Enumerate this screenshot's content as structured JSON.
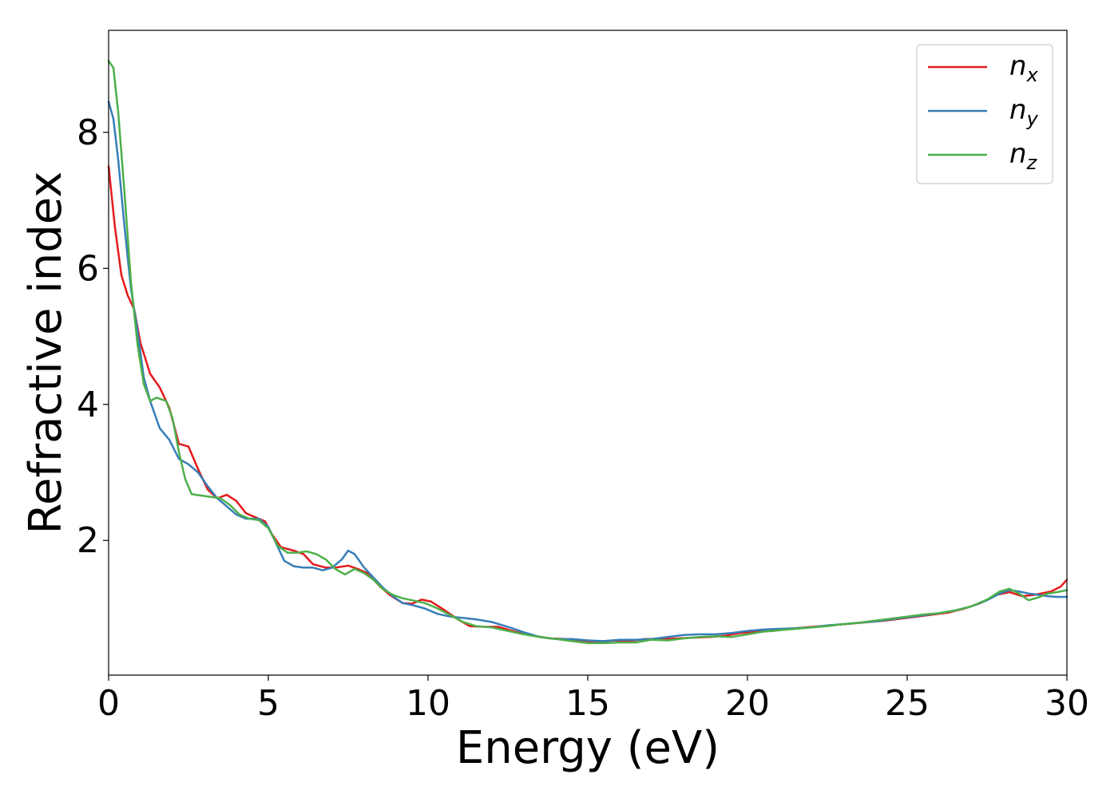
{
  "chart_data": {
    "type": "line",
    "title": "",
    "xlabel": "Energy (eV)",
    "ylabel": "Refractive index",
    "xlim": [
      0,
      30
    ],
    "ylim": [
      0.02,
      9.5
    ],
    "x_ticks": [
      "0",
      "5",
      "10",
      "15",
      "20",
      "25",
      "30"
    ],
    "y_ticks": [
      "2",
      "4",
      "6",
      "8"
    ],
    "grid": false,
    "legend_position": "top-right",
    "series": [
      {
        "name": "n",
        "sub": "x",
        "color": "#e41a1c",
        "points": [
          [
            0,
            7.5
          ],
          [
            0.2,
            6.6
          ],
          [
            0.4,
            5.9
          ],
          [
            0.6,
            5.6
          ],
          [
            0.8,
            5.4
          ],
          [
            1.0,
            4.9
          ],
          [
            1.3,
            4.45
          ],
          [
            1.6,
            4.25
          ],
          [
            1.9,
            3.95
          ],
          [
            2.1,
            3.6
          ],
          [
            2.2,
            3.42
          ],
          [
            2.5,
            3.38
          ],
          [
            2.8,
            3.05
          ],
          [
            3.1,
            2.75
          ],
          [
            3.4,
            2.62
          ],
          [
            3.7,
            2.67
          ],
          [
            4.0,
            2.58
          ],
          [
            4.3,
            2.4
          ],
          [
            4.6,
            2.34
          ],
          [
            4.9,
            2.28
          ],
          [
            5.1,
            2.1
          ],
          [
            5.4,
            1.9
          ],
          [
            5.8,
            1.85
          ],
          [
            6.1,
            1.8
          ],
          [
            6.4,
            1.65
          ],
          [
            6.8,
            1.6
          ],
          [
            7.1,
            1.6
          ],
          [
            7.5,
            1.63
          ],
          [
            7.8,
            1.58
          ],
          [
            8.1,
            1.52
          ],
          [
            8.5,
            1.32
          ],
          [
            8.8,
            1.2
          ],
          [
            9.2,
            1.08
          ],
          [
            9.5,
            1.07
          ],
          [
            9.8,
            1.13
          ],
          [
            10.1,
            1.1
          ],
          [
            10.5,
            0.98
          ],
          [
            10.9,
            0.85
          ],
          [
            11.3,
            0.74
          ],
          [
            11.8,
            0.73
          ],
          [
            12.2,
            0.73
          ],
          [
            12.8,
            0.65
          ],
          [
            13.3,
            0.6
          ],
          [
            13.8,
            0.56
          ],
          [
            14.3,
            0.55
          ],
          [
            14.8,
            0.53
          ],
          [
            15.3,
            0.5
          ],
          [
            15.8,
            0.53
          ],
          [
            16.3,
            0.52
          ],
          [
            16.8,
            0.55
          ],
          [
            17.3,
            0.55
          ],
          [
            17.8,
            0.56
          ],
          [
            18.3,
            0.57
          ],
          [
            18.8,
            0.58
          ],
          [
            19.3,
            0.6
          ],
          [
            19.8,
            0.64
          ],
          [
            20.3,
            0.66
          ],
          [
            20.8,
            0.67
          ],
          [
            21.3,
            0.7
          ],
          [
            21.8,
            0.72
          ],
          [
            22.3,
            0.74
          ],
          [
            22.8,
            0.76
          ],
          [
            23.3,
            0.78
          ],
          [
            23.8,
            0.8
          ],
          [
            24.3,
            0.82
          ],
          [
            24.8,
            0.85
          ],
          [
            25.3,
            0.88
          ],
          [
            25.8,
            0.91
          ],
          [
            26.3,
            0.94
          ],
          [
            26.8,
            1.0
          ],
          [
            27.3,
            1.08
          ],
          [
            27.8,
            1.2
          ],
          [
            28.2,
            1.24
          ],
          [
            28.6,
            1.18
          ],
          [
            29.0,
            1.2
          ],
          [
            29.5,
            1.25
          ],
          [
            29.8,
            1.32
          ],
          [
            30.0,
            1.42
          ]
        ]
      },
      {
        "name": "n",
        "sub": "y",
        "color": "#377eb8",
        "points": [
          [
            0,
            8.45
          ],
          [
            0.15,
            8.2
          ],
          [
            0.3,
            7.6
          ],
          [
            0.5,
            6.6
          ],
          [
            0.7,
            5.7
          ],
          [
            0.9,
            5.1
          ],
          [
            1.1,
            4.4
          ],
          [
            1.3,
            4.05
          ],
          [
            1.6,
            3.65
          ],
          [
            1.9,
            3.48
          ],
          [
            2.2,
            3.2
          ],
          [
            2.5,
            3.12
          ],
          [
            2.8,
            3.0
          ],
          [
            3.1,
            2.8
          ],
          [
            3.4,
            2.62
          ],
          [
            3.7,
            2.5
          ],
          [
            4.0,
            2.38
          ],
          [
            4.3,
            2.32
          ],
          [
            4.7,
            2.32
          ],
          [
            5.0,
            2.2
          ],
          [
            5.3,
            1.9
          ],
          [
            5.5,
            1.7
          ],
          [
            5.8,
            1.62
          ],
          [
            6.1,
            1.6
          ],
          [
            6.4,
            1.6
          ],
          [
            6.7,
            1.56
          ],
          [
            7.0,
            1.6
          ],
          [
            7.3,
            1.72
          ],
          [
            7.5,
            1.85
          ],
          [
            7.7,
            1.8
          ],
          [
            8.0,
            1.6
          ],
          [
            8.3,
            1.45
          ],
          [
            8.6,
            1.3
          ],
          [
            8.9,
            1.18
          ],
          [
            9.2,
            1.08
          ],
          [
            9.5,
            1.05
          ],
          [
            9.9,
            1.0
          ],
          [
            10.3,
            0.92
          ],
          [
            10.7,
            0.88
          ],
          [
            11.1,
            0.86
          ],
          [
            11.5,
            0.84
          ],
          [
            12.0,
            0.8
          ],
          [
            12.5,
            0.73
          ],
          [
            13.0,
            0.65
          ],
          [
            13.5,
            0.58
          ],
          [
            14.0,
            0.55
          ],
          [
            14.5,
            0.55
          ],
          [
            15.0,
            0.53
          ],
          [
            15.5,
            0.52
          ],
          [
            16.0,
            0.54
          ],
          [
            16.5,
            0.54
          ],
          [
            17.0,
            0.55
          ],
          [
            17.5,
            0.58
          ],
          [
            18.0,
            0.61
          ],
          [
            18.5,
            0.62
          ],
          [
            19.0,
            0.62
          ],
          [
            19.5,
            0.64
          ],
          [
            20.0,
            0.67
          ],
          [
            20.5,
            0.69
          ],
          [
            21.0,
            0.7
          ],
          [
            21.5,
            0.71
          ],
          [
            22.0,
            0.72
          ],
          [
            22.5,
            0.75
          ],
          [
            23.0,
            0.77
          ],
          [
            23.5,
            0.79
          ],
          [
            24.0,
            0.81
          ],
          [
            24.5,
            0.84
          ],
          [
            25.0,
            0.87
          ],
          [
            25.5,
            0.9
          ],
          [
            26.0,
            0.93
          ],
          [
            26.5,
            0.97
          ],
          [
            27.0,
            1.03
          ],
          [
            27.5,
            1.12
          ],
          [
            27.9,
            1.22
          ],
          [
            28.2,
            1.27
          ],
          [
            28.5,
            1.25
          ],
          [
            28.8,
            1.22
          ],
          [
            29.1,
            1.2
          ],
          [
            29.4,
            1.18
          ],
          [
            29.7,
            1.17
          ],
          [
            30.0,
            1.17
          ]
        ]
      },
      {
        "name": "n",
        "sub": "z",
        "color": "#4daf4a",
        "points": [
          [
            0,
            9.05
          ],
          [
            0.15,
            8.95
          ],
          [
            0.3,
            8.3
          ],
          [
            0.5,
            7.1
          ],
          [
            0.7,
            5.8
          ],
          [
            0.9,
            4.9
          ],
          [
            1.1,
            4.3
          ],
          [
            1.3,
            4.05
          ],
          [
            1.5,
            4.1
          ],
          [
            1.8,
            4.05
          ],
          [
            2.0,
            3.8
          ],
          [
            2.2,
            3.3
          ],
          [
            2.4,
            2.9
          ],
          [
            2.6,
            2.68
          ],
          [
            2.9,
            2.66
          ],
          [
            3.2,
            2.64
          ],
          [
            3.5,
            2.62
          ],
          [
            3.8,
            2.52
          ],
          [
            4.1,
            2.38
          ],
          [
            4.4,
            2.32
          ],
          [
            4.7,
            2.3
          ],
          [
            5.0,
            2.18
          ],
          [
            5.3,
            1.92
          ],
          [
            5.6,
            1.82
          ],
          [
            5.9,
            1.82
          ],
          [
            6.2,
            1.84
          ],
          [
            6.5,
            1.8
          ],
          [
            6.8,
            1.72
          ],
          [
            7.1,
            1.58
          ],
          [
            7.4,
            1.5
          ],
          [
            7.7,
            1.58
          ],
          [
            8.0,
            1.52
          ],
          [
            8.3,
            1.42
          ],
          [
            8.6,
            1.28
          ],
          [
            8.9,
            1.2
          ],
          [
            9.2,
            1.15
          ],
          [
            9.5,
            1.12
          ],
          [
            9.9,
            1.08
          ],
          [
            10.3,
            1.0
          ],
          [
            10.7,
            0.9
          ],
          [
            11.1,
            0.8
          ],
          [
            11.5,
            0.74
          ],
          [
            12.0,
            0.72
          ],
          [
            12.5,
            0.67
          ],
          [
            13.0,
            0.62
          ],
          [
            13.5,
            0.58
          ],
          [
            14.0,
            0.55
          ],
          [
            14.5,
            0.52
          ],
          [
            15.0,
            0.49
          ],
          [
            15.5,
            0.49
          ],
          [
            16.0,
            0.5
          ],
          [
            16.5,
            0.5
          ],
          [
            17.0,
            0.54
          ],
          [
            17.5,
            0.53
          ],
          [
            18.0,
            0.56
          ],
          [
            18.5,
            0.58
          ],
          [
            19.0,
            0.59
          ],
          [
            19.5,
            0.58
          ],
          [
            20.0,
            0.62
          ],
          [
            20.5,
            0.66
          ],
          [
            21.0,
            0.68
          ],
          [
            21.5,
            0.7
          ],
          [
            22.0,
            0.72
          ],
          [
            22.5,
            0.74
          ],
          [
            23.0,
            0.77
          ],
          [
            23.5,
            0.79
          ],
          [
            24.0,
            0.82
          ],
          [
            24.5,
            0.85
          ],
          [
            25.0,
            0.88
          ],
          [
            25.5,
            0.91
          ],
          [
            26.0,
            0.93
          ],
          [
            26.5,
            0.97
          ],
          [
            27.0,
            1.03
          ],
          [
            27.5,
            1.13
          ],
          [
            27.9,
            1.25
          ],
          [
            28.2,
            1.29
          ],
          [
            28.5,
            1.22
          ],
          [
            28.8,
            1.12
          ],
          [
            29.1,
            1.16
          ],
          [
            29.4,
            1.22
          ],
          [
            29.7,
            1.24
          ],
          [
            30.0,
            1.27
          ]
        ]
      }
    ]
  }
}
